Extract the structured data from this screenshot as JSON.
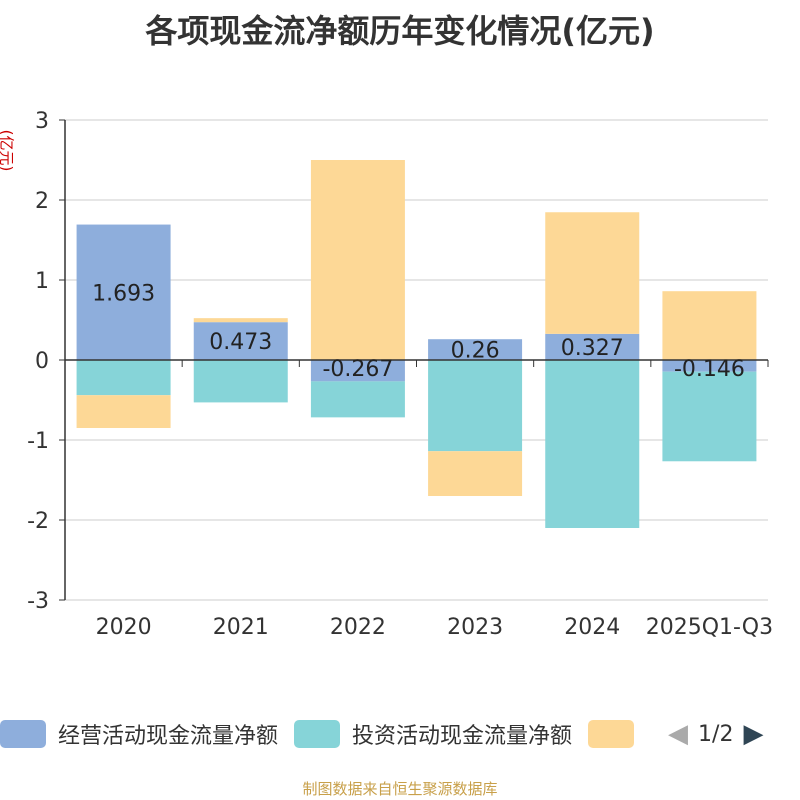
{
  "chart_data": {
    "type": "bar",
    "stacked": true,
    "title": "各项现金流净额历年变化情况(亿元)",
    "ylabel": "(亿元)",
    "ylim": [
      -3,
      3
    ],
    "yticks": [
      -3,
      -2,
      -1,
      0,
      1,
      2,
      3
    ],
    "categories": [
      "2020",
      "2021",
      "2022",
      "2023",
      "2024",
      "2025Q1-Q3"
    ],
    "series": [
      {
        "name": "经营活动现金流量净额",
        "color": "#8eaedc",
        "values": [
          1.693,
          0.473,
          -0.267,
          0.26,
          0.327,
          -0.146
        ],
        "labels": [
          "1.693",
          "0.473",
          "-0.267",
          "0.26",
          "0.327",
          "-0.146"
        ]
      },
      {
        "name": "投资活动现金流量净额",
        "color": "#86d4d8",
        "values": [
          -0.44,
          -0.53,
          -0.45,
          -1.14,
          -2.1,
          -1.12
        ]
      },
      {
        "name": "",
        "color": "#fdd896",
        "values": [
          -0.41,
          0.05,
          2.5,
          -0.56,
          1.52,
          0.86
        ]
      }
    ],
    "grid": true,
    "legend_position": "bottom"
  },
  "legend": {
    "items": [
      {
        "label": "经营活动现金流量净额",
        "color": "#8eaedc"
      },
      {
        "label": "投资活动现金流量净额",
        "color": "#86d4d8"
      },
      {
        "label": "",
        "color": "#fdd896"
      }
    ],
    "page": "1/2",
    "prev_color": "#aaaaaa",
    "next_color": "#2f4554"
  },
  "source": "制图数据来自恒生聚源数据库"
}
